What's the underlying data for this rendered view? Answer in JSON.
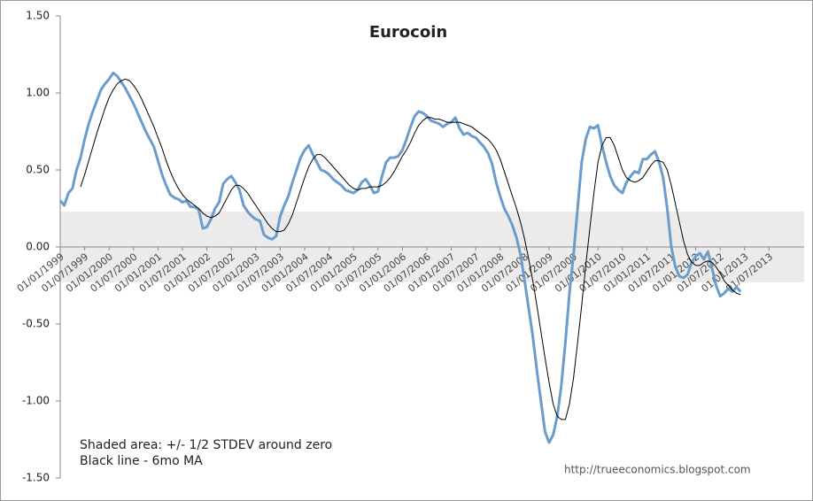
{
  "chart_data": {
    "type": "line",
    "title": "Eurocoin",
    "annotations": [
      "Shaded area: +/- 1/2 STDEV around zero",
      "Black line - 6mo MA",
      "http://trueeconomics.blogspot.com"
    ],
    "categories": [
      "01/01/1999",
      null,
      null,
      null,
      null,
      null,
      "01/07/1999",
      null,
      null,
      null,
      null,
      null,
      "01/01/2000",
      null,
      null,
      null,
      null,
      null,
      "01/07/2000",
      null,
      null,
      null,
      null,
      null,
      "01/01/2001",
      null,
      null,
      null,
      null,
      null,
      "01/07/2001",
      null,
      null,
      null,
      null,
      null,
      "01/01/2002",
      null,
      null,
      null,
      null,
      null,
      "01/07/2002",
      null,
      null,
      null,
      null,
      null,
      "01/01/2003",
      null,
      null,
      null,
      null,
      null,
      "01/07/2003",
      null,
      null,
      null,
      null,
      null,
      "01/01/2004",
      null,
      null,
      null,
      null,
      null,
      "01/07/2004",
      null,
      null,
      null,
      null,
      null,
      "01/01/2005",
      null,
      null,
      null,
      null,
      null,
      "01/07/2005",
      null,
      null,
      null,
      null,
      null,
      "01/01/2006",
      null,
      null,
      null,
      null,
      null,
      "01/07/2006",
      null,
      null,
      null,
      null,
      null,
      "01/01/2007",
      null,
      null,
      null,
      null,
      null,
      "01/07/2007",
      null,
      null,
      null,
      null,
      null,
      "01/01/2008",
      null,
      null,
      null,
      null,
      null,
      "01/07/2008",
      null,
      null,
      null,
      null,
      null,
      "01/01/2009",
      null,
      null,
      null,
      null,
      null,
      "01/07/2009",
      null,
      null,
      null,
      null,
      null,
      "01/01/2010",
      null,
      null,
      null,
      null,
      null,
      "01/07/2010",
      null,
      null,
      null,
      null,
      null,
      "01/01/2011",
      null,
      null,
      null,
      null,
      null,
      "01/07/2011",
      null,
      null,
      null,
      null,
      null,
      "01/01/2012",
      null,
      null,
      null,
      null,
      null,
      "01/07/2012",
      null,
      null,
      null,
      null,
      null,
      "01/01/2013",
      null,
      null,
      null,
      null,
      null,
      "01/07/2013"
    ],
    "series": [
      {
        "color": "#6a9ccc",
        "width": 3,
        "values": [
          0.3,
          0.27,
          0.35,
          0.38,
          0.5,
          0.58,
          0.7,
          0.8,
          0.88,
          0.95,
          1.02,
          1.06,
          1.09,
          1.13,
          1.11,
          1.07,
          1.03,
          0.98,
          0.93,
          0.87,
          0.81,
          0.75,
          0.7,
          0.65,
          0.56,
          0.47,
          0.4,
          0.34,
          0.32,
          0.31,
          0.29,
          0.3,
          0.26,
          0.26,
          0.24,
          0.12,
          0.13,
          0.18,
          0.25,
          0.29,
          0.41,
          0.44,
          0.46,
          0.42,
          0.37,
          0.27,
          0.23,
          0.2,
          0.18,
          0.17,
          0.08,
          0.06,
          0.05,
          0.07,
          0.2,
          0.27,
          0.33,
          0.42,
          0.5,
          0.58,
          0.63,
          0.66,
          0.6,
          0.55,
          0.5,
          0.49,
          0.47,
          0.44,
          0.42,
          0.4,
          0.37,
          0.36,
          0.35,
          0.37,
          0.42,
          0.44,
          0.4,
          0.35,
          0.36,
          0.46,
          0.55,
          0.58,
          0.58,
          0.59,
          0.63,
          0.7,
          0.78,
          0.85,
          0.88,
          0.87,
          0.85,
          0.82,
          0.81,
          0.8,
          0.78,
          0.8,
          0.81,
          0.84,
          0.77,
          0.73,
          0.74,
          0.72,
          0.71,
          0.68,
          0.65,
          0.61,
          0.54,
          0.42,
          0.33,
          0.25,
          0.2,
          0.14,
          0.06,
          -0.05,
          -0.22,
          -0.4,
          -0.58,
          -0.8,
          -1.0,
          -1.2,
          -1.27,
          -1.22,
          -1.1,
          -0.9,
          -0.62,
          -0.3,
          -0.05,
          0.25,
          0.55,
          0.7,
          0.78,
          0.77,
          0.79,
          0.66,
          0.55,
          0.46,
          0.4,
          0.37,
          0.35,
          0.42,
          0.46,
          0.49,
          0.48,
          0.57,
          0.57,
          0.6,
          0.62,
          0.55,
          0.45,
          0.25,
          0.0,
          -0.13,
          -0.19,
          -0.2,
          -0.18,
          -0.1,
          -0.06,
          -0.04,
          -0.08,
          -0.03,
          -0.14,
          -0.25,
          -0.32,
          -0.3,
          -0.27,
          -0.29,
          -0.26,
          -0.29,
          null,
          null,
          null,
          null,
          null,
          null,
          null
        ]
      },
      {
        "color": "#000000",
        "width": 1,
        "values": [
          null,
          null,
          null,
          null,
          null,
          0.39,
          0.47,
          0.56,
          0.65,
          0.74,
          0.82,
          0.9,
          0.97,
          1.02,
          1.06,
          1.08,
          1.09,
          1.08,
          1.05,
          1.01,
          0.96,
          0.9,
          0.84,
          0.78,
          0.71,
          0.64,
          0.56,
          0.49,
          0.43,
          0.38,
          0.34,
          0.31,
          0.29,
          0.27,
          0.25,
          0.22,
          0.2,
          0.19,
          0.2,
          0.22,
          0.27,
          0.32,
          0.37,
          0.4,
          0.4,
          0.38,
          0.35,
          0.31,
          0.27,
          0.23,
          0.19,
          0.15,
          0.12,
          0.1,
          0.1,
          0.11,
          0.15,
          0.21,
          0.29,
          0.37,
          0.45,
          0.52,
          0.57,
          0.6,
          0.6,
          0.58,
          0.55,
          0.52,
          0.49,
          0.46,
          0.43,
          0.4,
          0.38,
          0.37,
          0.38,
          0.38,
          0.39,
          0.39,
          0.39,
          0.4,
          0.42,
          0.45,
          0.49,
          0.54,
          0.59,
          0.63,
          0.68,
          0.74,
          0.79,
          0.82,
          0.84,
          0.84,
          0.83,
          0.83,
          0.82,
          0.81,
          0.81,
          0.81,
          0.81,
          0.8,
          0.79,
          0.78,
          0.76,
          0.74,
          0.72,
          0.7,
          0.67,
          0.63,
          0.57,
          0.49,
          0.41,
          0.33,
          0.25,
          0.16,
          0.05,
          -0.08,
          -0.22,
          -0.38,
          -0.55,
          -0.72,
          -0.88,
          -1.02,
          -1.1,
          -1.12,
          -1.12,
          -1.02,
          -0.85,
          -0.62,
          -0.38,
          -0.12,
          0.12,
          0.35,
          0.55,
          0.66,
          0.71,
          0.71,
          0.66,
          0.58,
          0.5,
          0.45,
          0.43,
          0.42,
          0.43,
          0.45,
          0.49,
          0.53,
          0.56,
          0.56,
          0.55,
          0.5,
          0.4,
          0.28,
          0.16,
          0.04,
          -0.05,
          -0.1,
          -0.12,
          -0.12,
          -0.1,
          -0.09,
          -0.1,
          -0.13,
          -0.17,
          -0.22,
          -0.25,
          -0.28,
          -0.3,
          -0.31,
          null,
          null,
          null,
          null,
          null,
          null,
          null
        ]
      }
    ],
    "shaded_band": [
      -0.23,
      0.23
    ],
    "shaded_color": "#ebebeb",
    "ylim": [
      -1.5,
      1.5
    ],
    "yticks": [
      {
        "value": -1.5,
        "label": "-1.50"
      },
      {
        "value": -1,
        "label": "-1.00"
      },
      {
        "value": -0.5,
        "label": "-0.50"
      },
      {
        "value": 0,
        "label": "0.00"
      },
      {
        "value": 0.5,
        "label": "0.50"
      },
      {
        "value": 1,
        "label": "1.00"
      },
      {
        "value": 1.5,
        "label": "1.50"
      }
    ],
    "grid": false
  }
}
